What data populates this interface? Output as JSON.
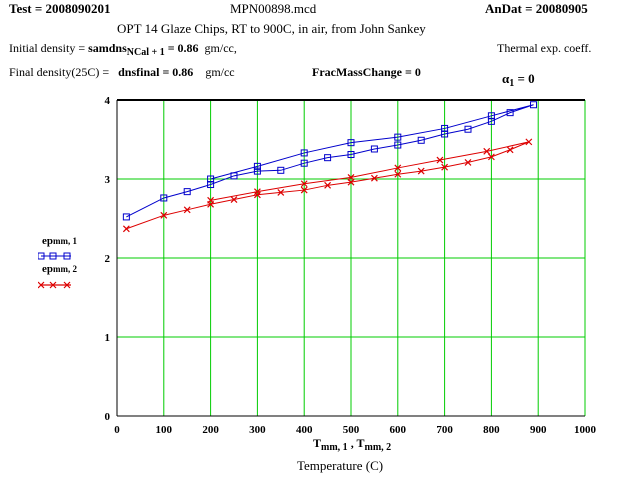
{
  "header": {
    "test_label": "Test = 2008090201",
    "file_name": "MPN00898.mcd",
    "andat_label": "AnDat = 20080905",
    "description": "OPT 14 Glaze Chips, RT to 900C, in air,  from John Sankey",
    "initial_density_label": "Initial density =",
    "initial_density_var": "samdns",
    "initial_density_sub": "NCal + 1",
    "initial_density_value": "= 0.86",
    "initial_density_units": "gm/cc,",
    "final_density_label": "Final density(25C) =",
    "final_density_expr": "dnsfinal = 0.86",
    "final_density_units": "gm/cc",
    "frac_mass_change": "FracMassChange = 0",
    "thermal_label": "Thermal exp. coeff.",
    "alpha_symbol": "α",
    "alpha_sub": "1",
    "alpha_value": "= 0"
  },
  "legend": {
    "items": [
      {
        "prefix": "ep",
        "sub": "mm, 1",
        "color": "#0000cc",
        "marker": "square"
      },
      {
        "prefix": "ep",
        "sub": "mm, 2",
        "color": "#dd0000",
        "marker": "x"
      }
    ]
  },
  "axes": {
    "x_title_main": "T",
    "x_title_sub1": "mm, 1",
    "x_title_sep": " , T",
    "x_title_sub2": "mm, 2",
    "x_caption": "Temperature (C)"
  },
  "chart_data": {
    "type": "line",
    "xlim": [
      0,
      1000
    ],
    "ylim": [
      0,
      4
    ],
    "x_ticks": [
      "0",
      "100",
      "200",
      "300",
      "400",
      "500",
      "600",
      "700",
      "800",
      "900",
      "1000"
    ],
    "y_ticks": [
      "0",
      "1",
      "2",
      "3",
      "4"
    ],
    "grid": true,
    "grid_color": "#00cc00",
    "series": [
      {
        "color": "#0000cc",
        "marker": "square",
        "x": [
          20,
          100,
          150,
          200,
          250,
          300,
          350,
          400,
          450,
          500,
          550,
          600,
          650,
          700,
          750,
          800,
          840,
          890,
          800,
          700,
          600,
          500,
          400,
          300,
          200
        ],
        "y": [
          2.52,
          2.76,
          2.84,
          2.93,
          3.04,
          3.1,
          3.11,
          3.2,
          3.27,
          3.31,
          3.38,
          3.43,
          3.49,
          3.57,
          3.63,
          3.73,
          3.84,
          3.94,
          3.8,
          3.64,
          3.53,
          3.46,
          3.33,
          3.16,
          3.0
        ]
      },
      {
        "color": "#dd0000",
        "marker": "x",
        "x": [
          20,
          100,
          150,
          200,
          250,
          300,
          350,
          400,
          450,
          500,
          550,
          600,
          650,
          700,
          750,
          800,
          840,
          880,
          790,
          690,
          600,
          500,
          400,
          300,
          200
        ],
        "y": [
          2.37,
          2.54,
          2.61,
          2.68,
          2.74,
          2.8,
          2.83,
          2.86,
          2.92,
          2.96,
          3.01,
          3.06,
          3.1,
          3.15,
          3.21,
          3.28,
          3.37,
          3.47,
          3.35,
          3.24,
          3.14,
          3.02,
          2.94,
          2.84,
          2.73
        ]
      }
    ]
  }
}
